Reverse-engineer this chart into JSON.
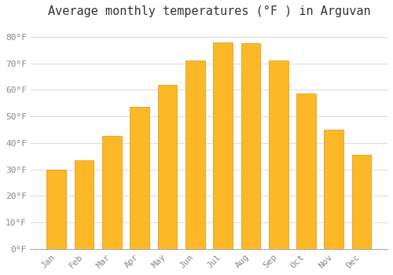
{
  "title": "Average monthly temperatures (°F ) in Arguvan",
  "months": [
    "Jan",
    "Feb",
    "Mar",
    "Apr",
    "May",
    "Jun",
    "Jul",
    "Aug",
    "Sep",
    "Oct",
    "Nov",
    "Dec"
  ],
  "values": [
    30,
    33.5,
    42.5,
    53.5,
    62,
    71,
    78,
    77.5,
    71,
    58.5,
    45,
    35.5
  ],
  "bar_color": "#FDB827",
  "bar_edge_color": "#E09010",
  "background_color": "#FFFFFF",
  "grid_color": "#DDDDDD",
  "ylim": [
    0,
    85
  ],
  "yticks": [
    0,
    10,
    20,
    30,
    40,
    50,
    60,
    70,
    80
  ],
  "ytick_labels": [
    "0°F",
    "10°F",
    "20°F",
    "30°F",
    "40°F",
    "50°F",
    "60°F",
    "70°F",
    "80°F"
  ],
  "title_fontsize": 11,
  "tick_fontsize": 8,
  "font_family": "monospace"
}
